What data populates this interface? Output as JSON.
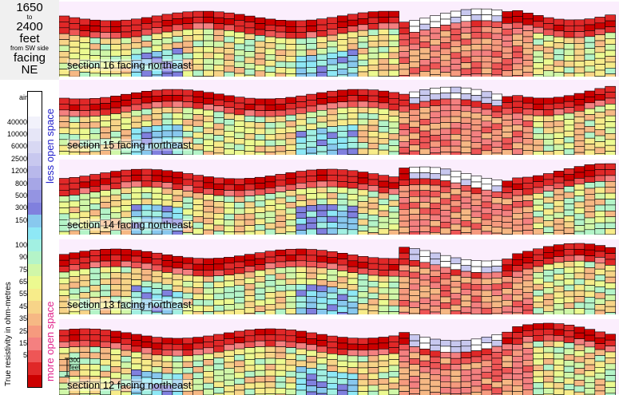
{
  "title": {
    "from_value": "1650",
    "to_word": "to",
    "to_value": "2400",
    "unit": "feet",
    "side_note": "from SW side",
    "facing_word": "facing",
    "facing_dir": "NE"
  },
  "legend": {
    "axis_label": "True resistivity in ohm-metres",
    "less_label": "less open space",
    "more_label": "more open space",
    "less_color": "#2222cc",
    "more_color": "#e0208a",
    "levels": [
      {
        "label": "air",
        "color": "#ffffff"
      },
      {
        "label": "",
        "color": "#ffffff"
      },
      {
        "label": "40000",
        "color": "#f2f2fb"
      },
      {
        "label": "10000",
        "color": "#e6e6f7"
      },
      {
        "label": "6000",
        "color": "#d8d8f3"
      },
      {
        "label": "2500",
        "color": "#c8c8ef"
      },
      {
        "label": "1200",
        "color": "#b8b8eb"
      },
      {
        "label": "800",
        "color": "#a6a6e6"
      },
      {
        "label": "500",
        "color": "#9494e2"
      },
      {
        "label": "300",
        "color": "#8080de"
      },
      {
        "label": "150",
        "color": "#88c8ee"
      },
      {
        "label": "",
        "color": "#8ee8f6"
      },
      {
        "label": "100",
        "color": "#a2f0e2"
      },
      {
        "label": "90",
        "color": "#b4f4c8"
      },
      {
        "label": "75",
        "color": "#d0f7a8"
      },
      {
        "label": "65",
        "color": "#ecfa90"
      },
      {
        "label": "55",
        "color": "#f7ec8a"
      },
      {
        "label": "45",
        "color": "#f7d488"
      },
      {
        "label": "35",
        "color": "#f6b884"
      },
      {
        "label": "25",
        "color": "#f69a7e"
      },
      {
        "label": "15",
        "color": "#f48080"
      },
      {
        "label": "5",
        "color": "#ee5656"
      },
      {
        "label": "",
        "color": "#e02828"
      },
      {
        "label": "",
        "color": "#cc0000"
      }
    ]
  },
  "sections": [
    {
      "label": "section 16 facing northeast"
    },
    {
      "label": "section 15 facing northeast"
    },
    {
      "label": "section 14 facing northeast"
    },
    {
      "label": "section 13 facing northeast"
    },
    {
      "label": "section 12 facing northeast"
    }
  ],
  "scale_bar": {
    "value": "300",
    "unit": "feet"
  }
}
